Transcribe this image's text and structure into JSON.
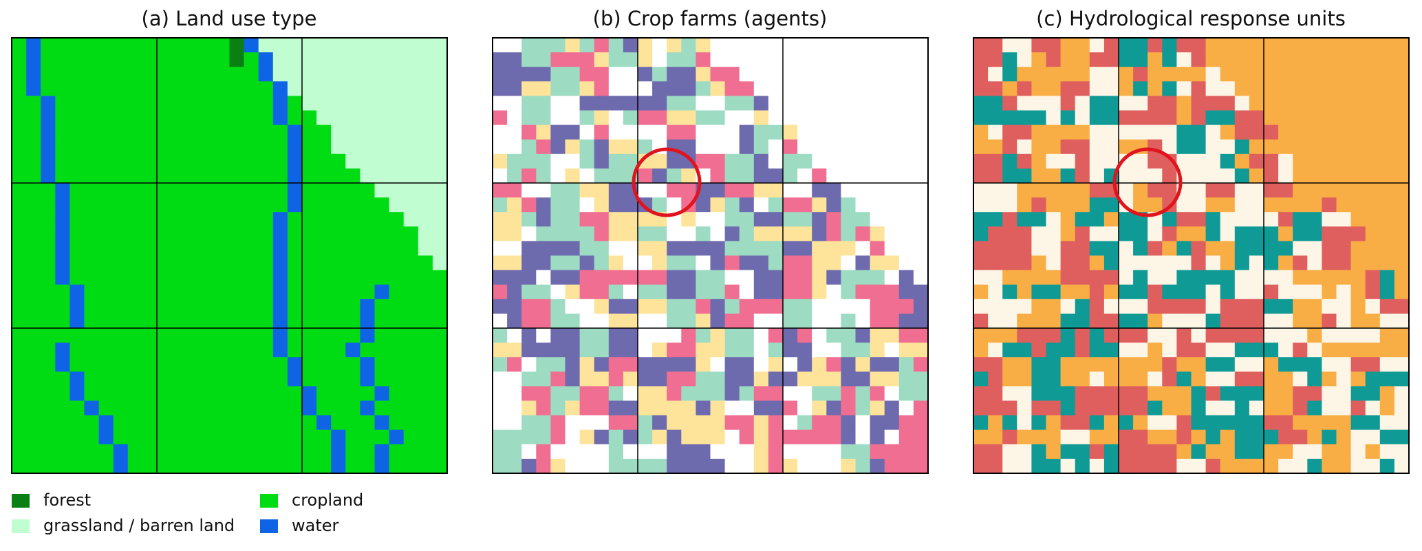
{
  "panels": [
    {
      "title": "(a)  Land use type"
    },
    {
      "title": "(b)  Crop farms (agents)"
    },
    {
      "title": "(c)  Hydrological response units"
    }
  ],
  "legend": [
    {
      "label": "forest",
      "color": "#0a7f14"
    },
    {
      "label": "grassland / barren land",
      "color": "#c0fdd0"
    },
    {
      "label": "cropland",
      "color": "#00dc14"
    },
    {
      "label": "water",
      "color": "#0f64e6"
    }
  ]
}
